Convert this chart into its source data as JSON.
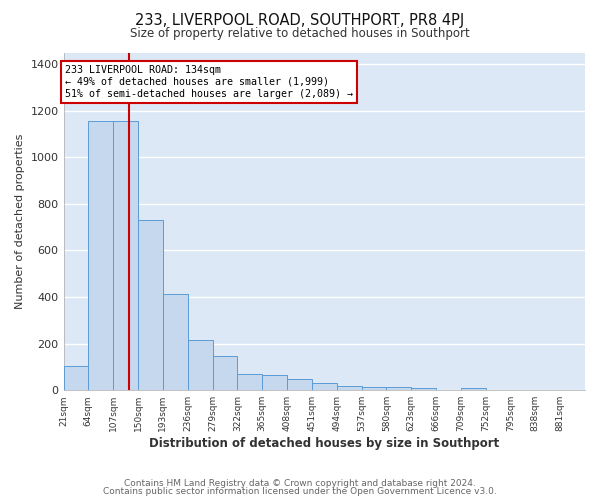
{
  "title": "233, LIVERPOOL ROAD, SOUTHPORT, PR8 4PJ",
  "subtitle": "Size of property relative to detached houses in Southport",
  "xlabel": "Distribution of detached houses by size in Southport",
  "ylabel": "Number of detached properties",
  "footer_lines": [
    "Contains HM Land Registry data © Crown copyright and database right 2024.",
    "Contains public sector information licensed under the Open Government Licence v3.0."
  ],
  "bin_labels": [
    "21sqm",
    "64sqm",
    "107sqm",
    "150sqm",
    "193sqm",
    "236sqm",
    "279sqm",
    "322sqm",
    "365sqm",
    "408sqm",
    "451sqm",
    "494sqm",
    "537sqm",
    "580sqm",
    "623sqm",
    "666sqm",
    "709sqm",
    "752sqm",
    "795sqm",
    "838sqm",
    "881sqm"
  ],
  "bin_edges": [
    21,
    64,
    107,
    150,
    193,
    236,
    279,
    322,
    365,
    408,
    451,
    494,
    537,
    580,
    623,
    666,
    709,
    752,
    795,
    838,
    881
  ],
  "bar_heights": [
    105,
    1155,
    1155,
    730,
    415,
    215,
    145,
    70,
    65,
    50,
    30,
    20,
    15,
    15,
    10,
    0,
    10,
    0,
    0,
    0,
    0
  ],
  "bar_color": "#c5d8ed",
  "bar_edge_color": "#5b9bd5",
  "plot_background_color": "#dce8f5",
  "figure_background_color": "#ffffff",
  "grid_color": "#ffffff",
  "red_line_x": 134,
  "annotation_text": "233 LIVERPOOL ROAD: 134sqm\n← 49% of detached houses are smaller (1,999)\n51% of semi-detached houses are larger (2,089) →",
  "annotation_box_edge": "#cc0000",
  "annotation_box_face": "#ffffff",
  "ylim": [
    0,
    1450
  ],
  "yticks": [
    0,
    200,
    400,
    600,
    800,
    1000,
    1200,
    1400
  ],
  "title_fontsize": 10.5,
  "subtitle_fontsize": 8.5,
  "footer_fontsize": 6.5,
  "ylabel_fontsize": 8,
  "xlabel_fontsize": 8.5
}
